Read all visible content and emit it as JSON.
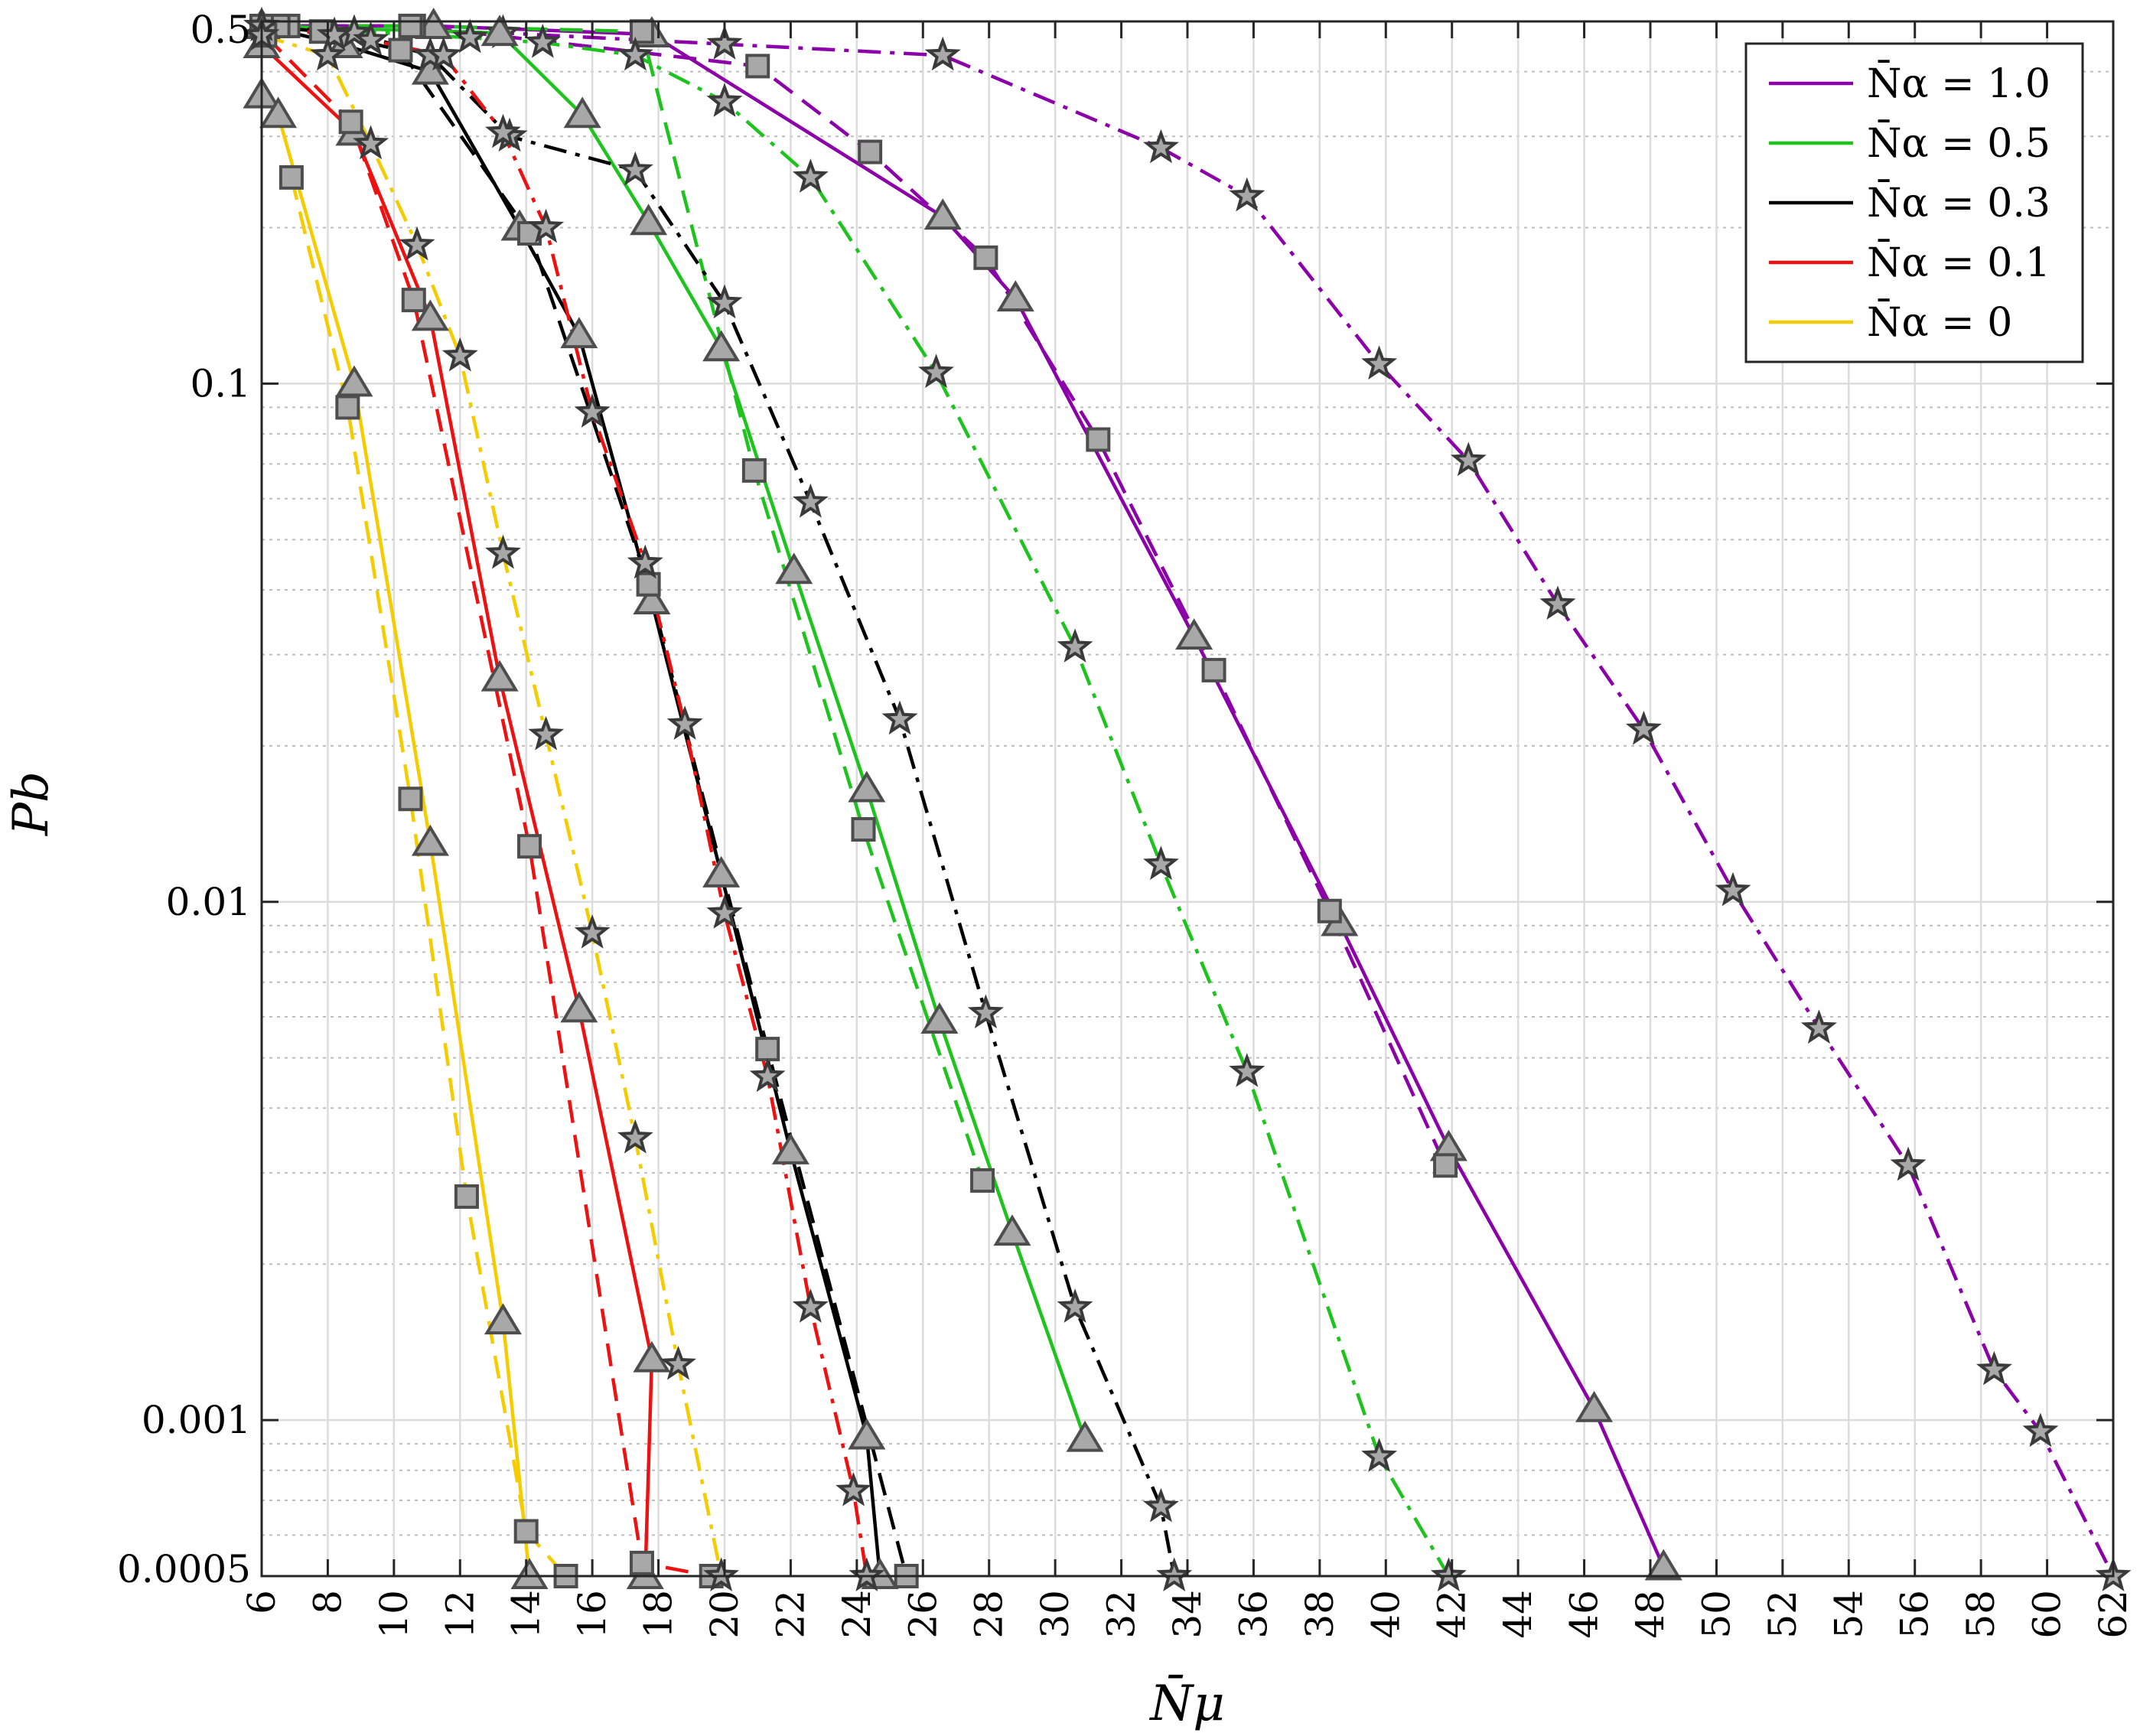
{
  "chart_data": {
    "type": "line",
    "title": "",
    "xlabel": "N̄μ",
    "ylabel": "Pb",
    "xlim": [
      6,
      62
    ],
    "ylim": [
      0.0005,
      0.5
    ],
    "y_scale": "log",
    "grid": true,
    "legend_position": "top-right",
    "x_ticks": [
      "6",
      "8",
      "10",
      "12",
      "14",
      "16",
      "18",
      "20",
      "22",
      "24",
      "26",
      "28",
      "30",
      "32",
      "34",
      "36",
      "38",
      "40",
      "42",
      "44",
      "46",
      "48",
      "50",
      "52",
      "54",
      "56",
      "58",
      "60",
      "62"
    ],
    "y_ticks": [
      {
        "value": 0.5,
        "label": "0.5"
      },
      {
        "value": 0.1,
        "label": "0.1"
      },
      {
        "value": 0.01,
        "label": "0.01"
      },
      {
        "value": 0.001,
        "label": "0.001"
      },
      {
        "value": 0.0005,
        "label": "0.0005"
      }
    ],
    "legend": [
      {
        "label": "N̄α = 1.0",
        "color": "#8b00a8"
      },
      {
        "label": "N̄α = 0.5",
        "color": "#1ec31e"
      },
      {
        "label": "N̄α = 0.3",
        "color": "#000000"
      },
      {
        "label": "N̄α = 0.1",
        "color": "#ee1111"
      },
      {
        "label": "N̄α = 0",
        "color": "#f4cc00"
      }
    ],
    "series": [
      {
        "group": "N̄α = 1.0",
        "color": "#8b00a8",
        "dash": "solid",
        "marker": "triangle",
        "points": [
          [
            6,
            0.49
          ],
          [
            11.2,
            0.49
          ],
          [
            17.8,
            0.472
          ],
          [
            26.6,
            0.21
          ],
          [
            28.8,
            0.146
          ],
          [
            34.2,
            0.0325
          ],
          [
            38.6,
            0.0091
          ],
          [
            41.9,
            0.00335
          ],
          [
            46.3,
            0.00105
          ],
          [
            48.4,
            0.00052
          ]
        ]
      },
      {
        "group": "N̄α = 1.0",
        "color": "#8b00a8",
        "dash": "dashed",
        "marker": "square",
        "points": [
          [
            6.8,
            0.49
          ],
          [
            10.6,
            0.49
          ],
          [
            21,
            0.41
          ],
          [
            24.4,
            0.28
          ],
          [
            27.9,
            0.175
          ],
          [
            31.3,
            0.078
          ],
          [
            34.8,
            0.028
          ],
          [
            38.3,
            0.0096
          ],
          [
            41.8,
            0.0031
          ]
        ]
      },
      {
        "group": "N̄α = 1.0",
        "color": "#8b00a8",
        "dash": "dashdot",
        "marker": "star",
        "points": [
          [
            6,
            0.49
          ],
          [
            13.3,
            0.475
          ],
          [
            20,
            0.452
          ],
          [
            26.6,
            0.43
          ],
          [
            33.2,
            0.285
          ],
          [
            35.8,
            0.23
          ],
          [
            39.8,
            0.109
          ],
          [
            42.5,
            0.071
          ],
          [
            45.2,
            0.0375
          ],
          [
            47.8,
            0.0215
          ],
          [
            50.5,
            0.0105
          ],
          [
            53.1,
            0.0057
          ],
          [
            55.8,
            0.0031
          ],
          [
            58.4,
            0.00125
          ],
          [
            59.8,
            0.00095
          ],
          [
            62,
            0.0005
          ]
        ]
      },
      {
        "group": "N̄α = 0.5",
        "color": "#1ec31e",
        "dash": "solid",
        "marker": "triangle",
        "points": [
          [
            6,
            0.49
          ],
          [
            13.2,
            0.475
          ],
          [
            15.7,
            0.33
          ],
          [
            17.7,
            0.205
          ],
          [
            19.9,
            0.117
          ],
          [
            22.1,
            0.0435
          ],
          [
            24.3,
            0.0165
          ],
          [
            26.5,
            0.0059
          ],
          [
            28.7,
            0.0023
          ],
          [
            30.9,
            0.00092
          ]
        ]
      },
      {
        "group": "N̄α = 0.5",
        "color": "#1ec31e",
        "dash": "dashed",
        "marker": "square",
        "points": [
          [
            6.5,
            0.49
          ],
          [
            10.5,
            0.49
          ],
          [
            17.5,
            0.478
          ],
          [
            20.9,
            0.068
          ],
          [
            24.2,
            0.0138
          ],
          [
            27.8,
            0.0029
          ]
        ]
      },
      {
        "group": "N̄α = 0.5",
        "color": "#1ec31e",
        "dash": "dashdot",
        "marker": "star",
        "points": [
          [
            6,
            0.49
          ],
          [
            12.3,
            0.465
          ],
          [
            14.5,
            0.455
          ],
          [
            17.3,
            0.43
          ],
          [
            20,
            0.35
          ],
          [
            22.6,
            0.25
          ],
          [
            26.4,
            0.105
          ],
          [
            30.6,
            0.031
          ],
          [
            33.2,
            0.0118
          ],
          [
            35.8,
            0.0047
          ],
          [
            39.8,
            0.00085
          ],
          [
            41.9,
            0.0005
          ]
        ]
      },
      {
        "group": "N̄α = 0.3",
        "color": "#000000",
        "dash": "solid",
        "marker": "triangle",
        "points": [
          [
            6,
            0.49
          ],
          [
            8.5,
            0.45
          ],
          [
            11.1,
            0.4
          ],
          [
            13.8,
            0.2
          ],
          [
            15.6,
            0.124
          ],
          [
            17.8,
            0.038
          ],
          [
            19.9,
            0.0113
          ],
          [
            22,
            0.0033
          ],
          [
            24.3,
            0.00093
          ],
          [
            24.7,
            0.0005
          ]
        ]
      },
      {
        "group": "N̄α = 0.3",
        "color": "#000000",
        "dash": "dashed",
        "marker": "square",
        "points": [
          [
            6,
            0.49
          ],
          [
            7.8,
            0.478
          ],
          [
            10.2,
            0.44
          ],
          [
            14.1,
            0.195
          ],
          [
            17.7,
            0.041
          ],
          [
            21.3,
            0.0052
          ],
          [
            25.5,
            0.0005
          ]
        ]
      },
      {
        "group": "N̄α = 0.3",
        "color": "#000000",
        "dash": "dashdot",
        "marker": "star",
        "points": [
          [
            6,
            0.49
          ],
          [
            8.8,
            0.475
          ],
          [
            11.1,
            0.43
          ],
          [
            13.5,
            0.3
          ],
          [
            17.3,
            0.258
          ],
          [
            20,
            0.143
          ],
          [
            22.6,
            0.059
          ],
          [
            25.3,
            0.0225
          ],
          [
            27.9,
            0.0061
          ],
          [
            30.6,
            0.00165
          ],
          [
            33.2,
            0.00068
          ],
          [
            33.6,
            0.0005
          ]
        ]
      },
      {
        "group": "N̄α = 0.1",
        "color": "#ee1111",
        "dash": "solid",
        "marker": "triangle",
        "points": [
          [
            6,
            0.45
          ],
          [
            8.8,
            0.305
          ],
          [
            11.1,
            0.134
          ],
          [
            13.2,
            0.027
          ],
          [
            15.6,
            0.0062
          ],
          [
            17.8,
            0.00131
          ],
          [
            17.6,
            0.0005
          ]
        ]
      },
      {
        "group": "N̄α = 0.1",
        "color": "#ee1111",
        "dash": "dashed",
        "marker": "square",
        "points": [
          [
            6.1,
            0.47
          ],
          [
            8.7,
            0.32
          ],
          [
            10.6,
            0.145
          ],
          [
            14.1,
            0.0128
          ],
          [
            17.5,
            0.00053
          ],
          [
            19.6,
            0.0005
          ]
        ]
      },
      {
        "group": "N̄α = 0.1",
        "color": "#ee1111",
        "dash": "dashdot",
        "marker": "star",
        "points": [
          [
            6,
            0.49
          ],
          [
            8.2,
            0.47
          ],
          [
            9.3,
            0.46
          ],
          [
            11.5,
            0.43
          ],
          [
            13.3,
            0.305
          ],
          [
            14.6,
            0.2
          ],
          [
            16,
            0.088
          ],
          [
            17.6,
            0.045
          ],
          [
            18.8,
            0.022
          ],
          [
            20,
            0.0095
          ],
          [
            21.3,
            0.0046
          ],
          [
            22.6,
            0.00165
          ],
          [
            23.9,
            0.00073
          ],
          [
            24.3,
            0.0005
          ]
        ]
      },
      {
        "group": "N̄α = 0",
        "color": "#f4cc00",
        "dash": "solid",
        "marker": "triangle",
        "points": [
          [
            6,
            0.36
          ],
          [
            6.5,
            0.33
          ],
          [
            8.8,
            0.1
          ],
          [
            11.1,
            0.013
          ],
          [
            13.3,
            0.00155
          ],
          [
            14.1,
            0.0005
          ]
        ]
      },
      {
        "group": "N̄α = 0",
        "color": "#f4cc00",
        "dash": "dashed",
        "marker": "square",
        "points": [
          [
            6.9,
            0.25
          ],
          [
            8.6,
            0.09
          ],
          [
            10.5,
            0.0158
          ],
          [
            12.2,
            0.0027
          ],
          [
            14,
            0.00061
          ],
          [
            15.2,
            0.0005
          ]
        ]
      },
      {
        "group": "N̄α = 0",
        "color": "#f4cc00",
        "dash": "dashdot",
        "marker": "star",
        "points": [
          [
            6,
            0.47
          ],
          [
            8,
            0.43
          ],
          [
            9.3,
            0.29
          ],
          [
            10.7,
            0.185
          ],
          [
            12,
            0.113
          ],
          [
            13.3,
            0.047
          ],
          [
            14.6,
            0.021
          ],
          [
            16,
            0.0087
          ],
          [
            17.3,
            0.0035
          ],
          [
            18.6,
            0.00128
          ],
          [
            19.9,
            0.0005
          ]
        ]
      }
    ]
  }
}
